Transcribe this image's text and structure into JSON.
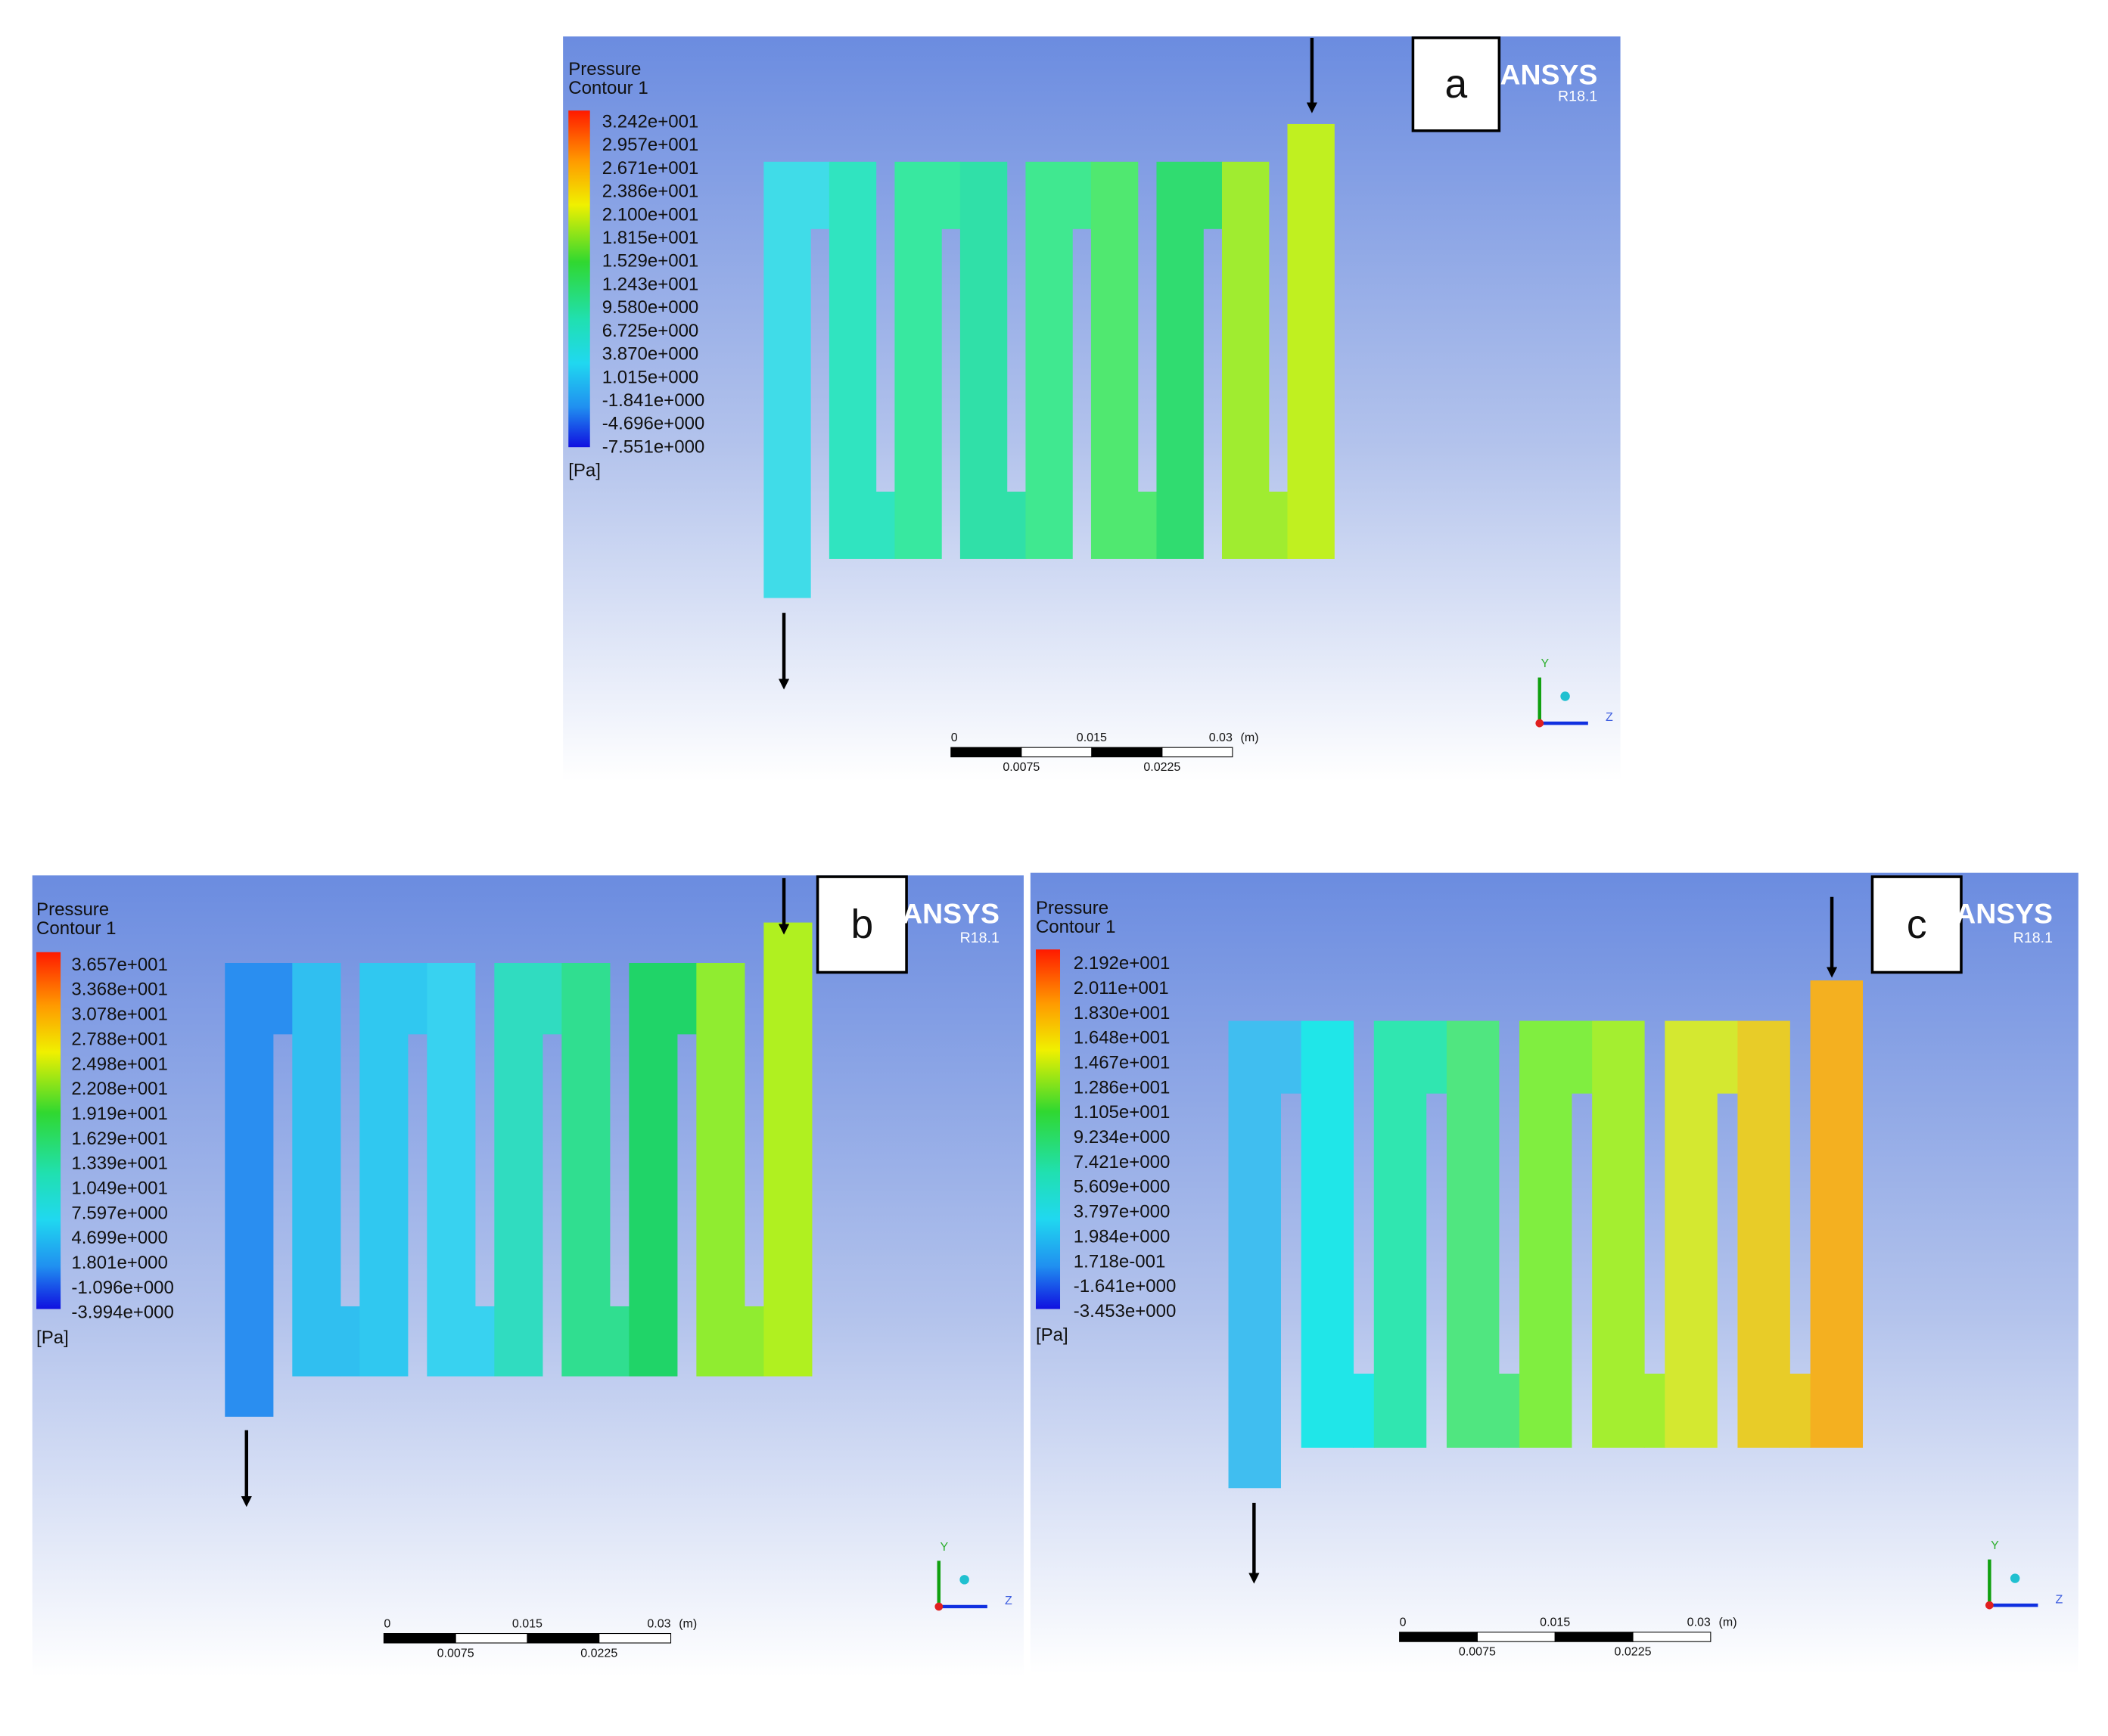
{
  "panels": [
    {
      "label": "a",
      "legend": {
        "title": "Pressure",
        "subtitle": "Contour 1",
        "values": [
          "3.242e+001",
          "2.957e+001",
          "2.671e+001",
          "2.386e+001",
          "2.100e+001",
          "1.815e+001",
          "1.529e+001",
          "1.243e+001",
          "9.580e+000",
          "6.725e+000",
          "3.870e+000",
          "1.015e+000",
          "-1.841e+000",
          "-4.696e+000",
          "-7.551e+000"
        ],
        "unit": "[Pa]"
      },
      "logo": {
        "name": "ANSYS",
        "version": "R18.1"
      },
      "scale": {
        "top": [
          "0",
          "0.015",
          "0.03"
        ],
        "unit": "(m)",
        "bottom": [
          "0.0075",
          "0.0225"
        ]
      },
      "axes": {
        "y": "Y",
        "z": "Z"
      }
    },
    {
      "label": "b",
      "legend": {
        "title": "Pressure",
        "subtitle": "Contour 1",
        "values": [
          "3.657e+001",
          "3.368e+001",
          "3.078e+001",
          "2.788e+001",
          "2.498e+001",
          "2.208e+001",
          "1.919e+001",
          "1.629e+001",
          "1.339e+001",
          "1.049e+001",
          "7.597e+000",
          "4.699e+000",
          "1.801e+000",
          "-1.096e+000",
          "-3.994e+000"
        ],
        "unit": "[Pa]"
      },
      "logo": {
        "name": "ANSYS",
        "version": "R18.1"
      },
      "scale": {
        "top": [
          "0",
          "0.015",
          "0.03"
        ],
        "unit": "(m)",
        "bottom": [
          "0.0075",
          "0.0225"
        ]
      },
      "axes": {
        "y": "Y",
        "z": "Z"
      }
    },
    {
      "label": "c",
      "legend": {
        "title": "Pressure",
        "subtitle": "Contour 1",
        "values": [
          "2.192e+001",
          "2.011e+001",
          "1.830e+001",
          "1.648e+001",
          "1.467e+001",
          "1.286e+001",
          "1.105e+001",
          "9.234e+000",
          "7.421e+000",
          "5.609e+000",
          "3.797e+000",
          "1.984e+000",
          "1.718e-001",
          "-1.641e+000",
          "-3.453e+000"
        ],
        "unit": "[Pa]"
      },
      "logo": {
        "name": "ANSYS",
        "version": "R18.1"
      },
      "scale": {
        "top": [
          "0",
          "0.015",
          "0.03"
        ],
        "unit": "(m)",
        "bottom": [
          "0.0075",
          "0.0225"
        ]
      },
      "axes": {
        "y": "Y",
        "z": "Z"
      }
    }
  ]
}
